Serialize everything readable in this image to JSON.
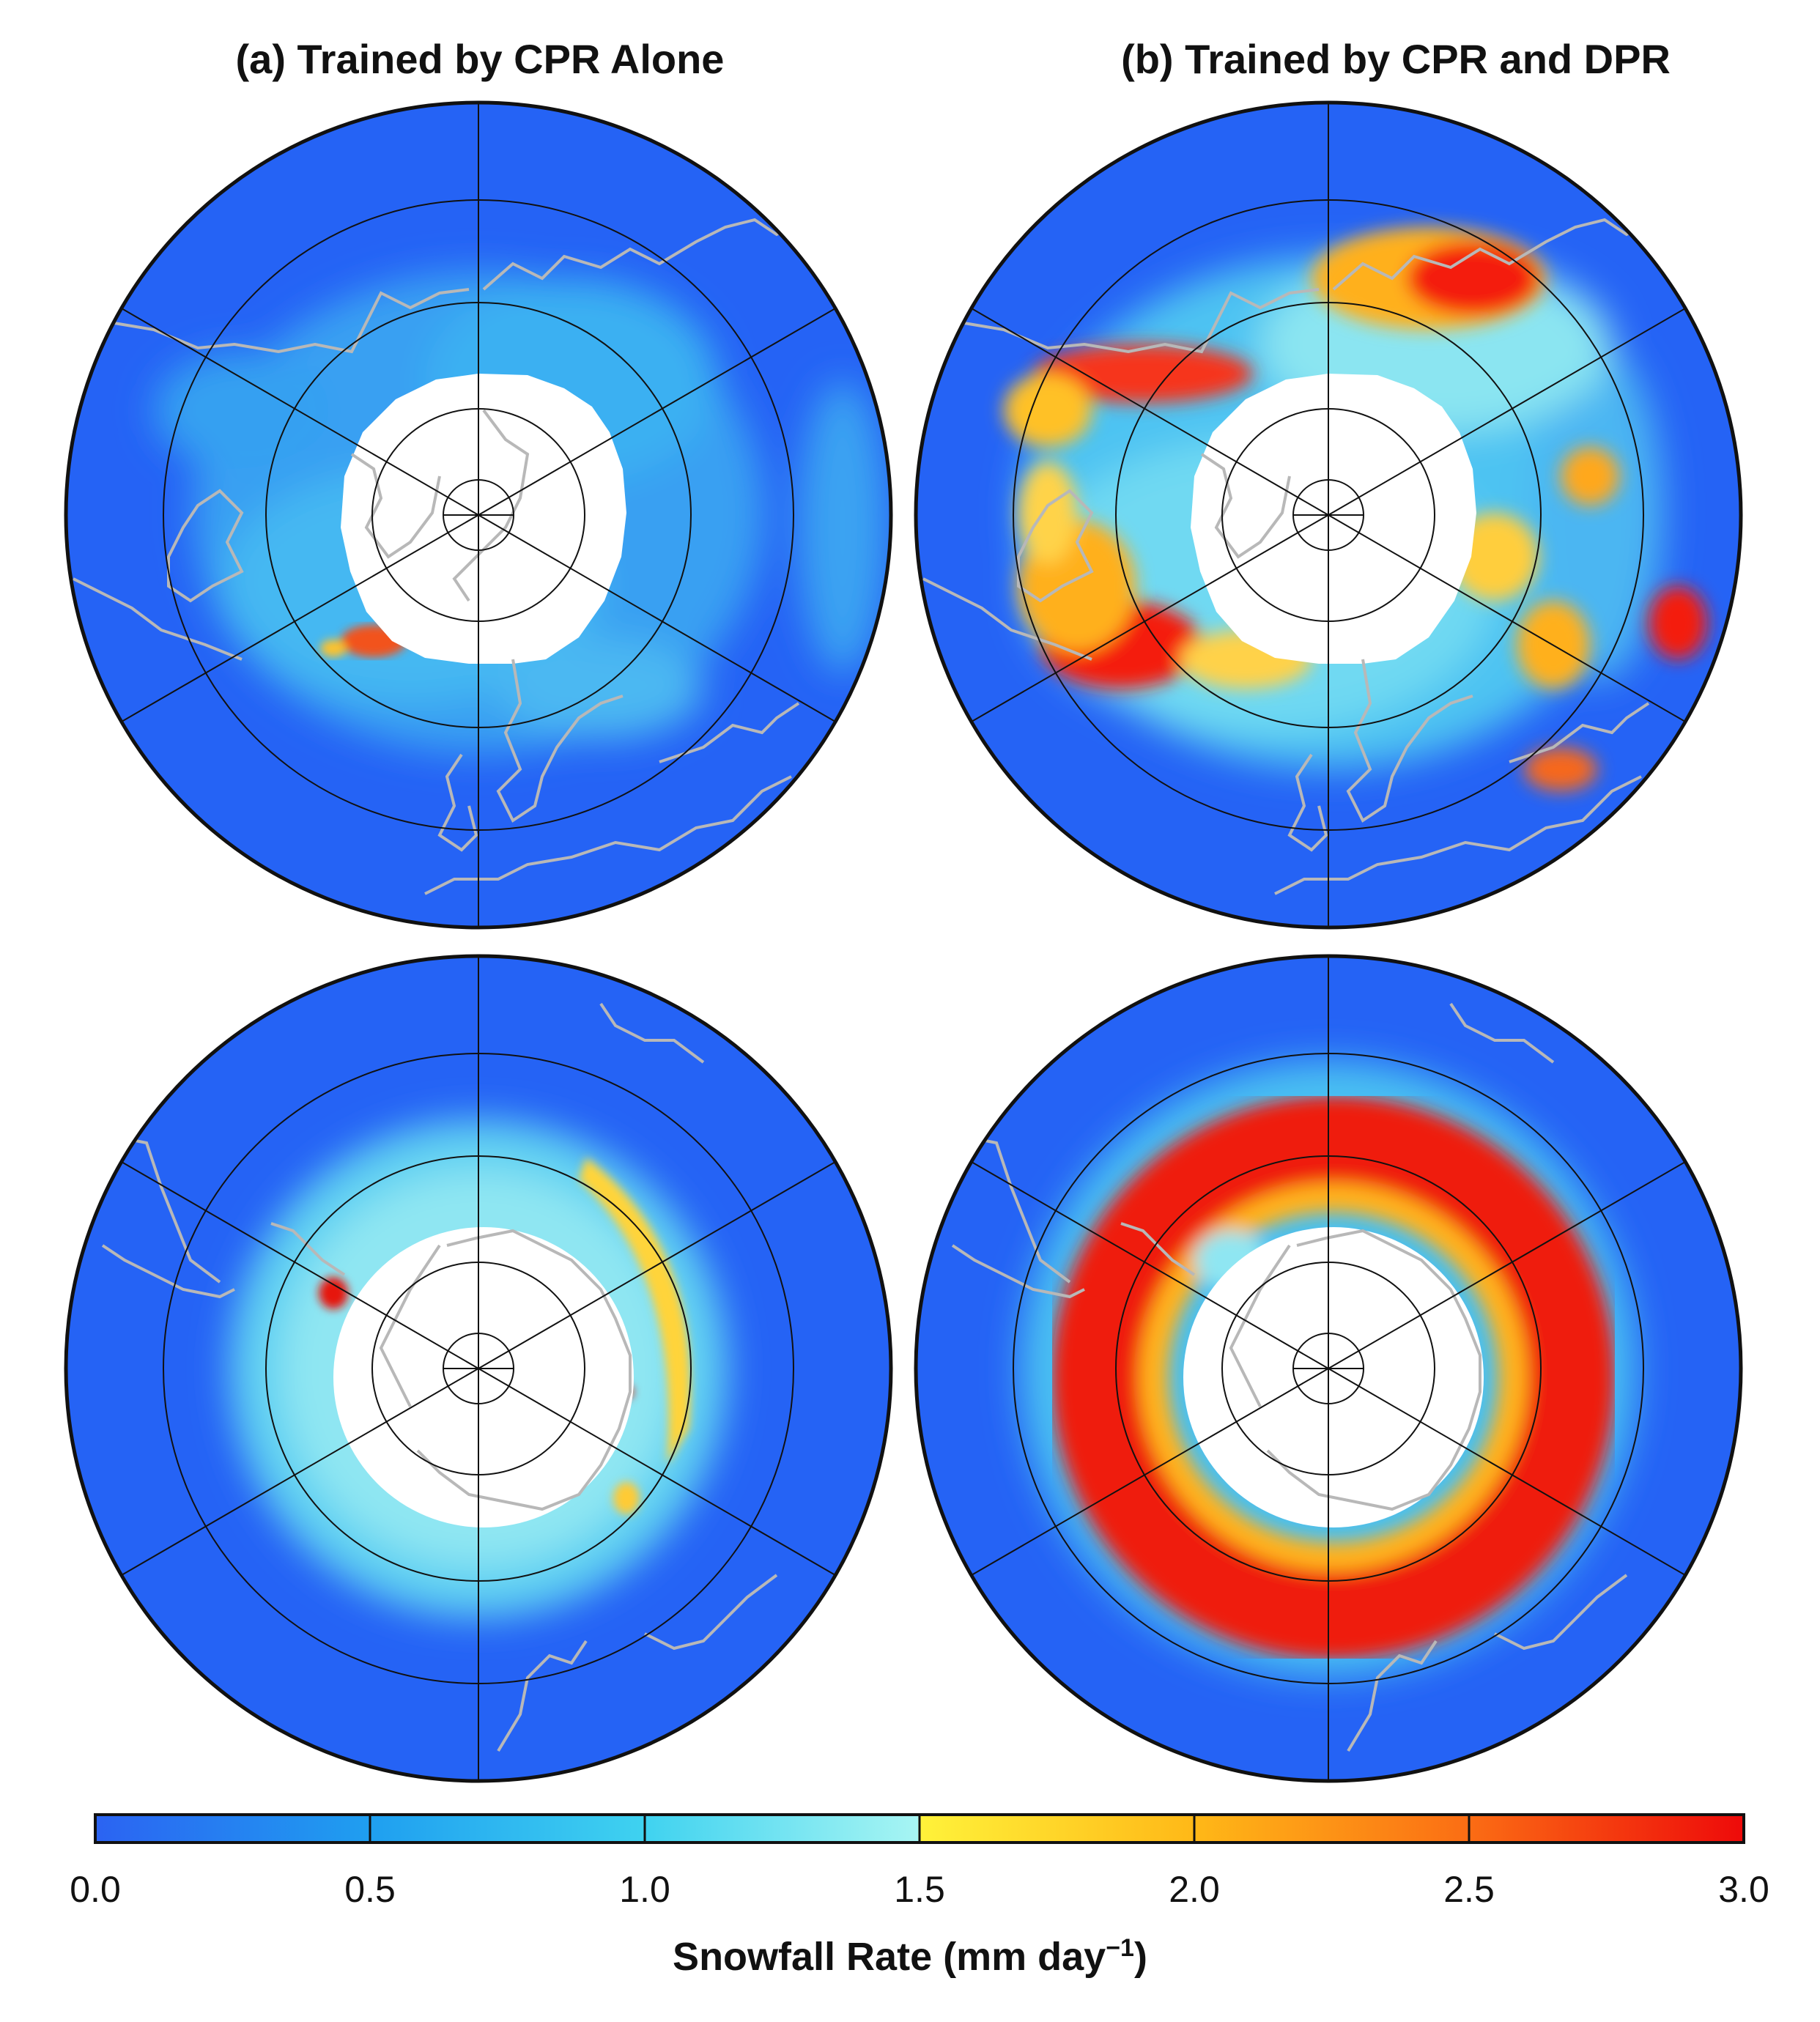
{
  "panels": {
    "a_title": "(a) Trained by CPR Alone",
    "b_title": "(b) Trained by CPR and DPR"
  },
  "colorbar": {
    "label_main": "Snowfall Rate (mm day",
    "label_exp": "−1",
    "label_close": ")",
    "min": 0.0,
    "max": 3.0,
    "ticks": [
      "0.0",
      "0.5",
      "1.0",
      "1.5",
      "2.0",
      "2.5",
      "3.0"
    ],
    "colors": [
      "#2b63f2",
      "#1f9ff0",
      "#3fd2f0",
      "#a7f5f3",
      "#fff23a",
      "#ffb817",
      "#fb6d14",
      "#ee0a0a"
    ]
  },
  "colors": {
    "ocean": "#2563f5",
    "pole_hole": "#ffffff",
    "coastline": "#b8b8b8",
    "graticule": "#111111"
  }
}
